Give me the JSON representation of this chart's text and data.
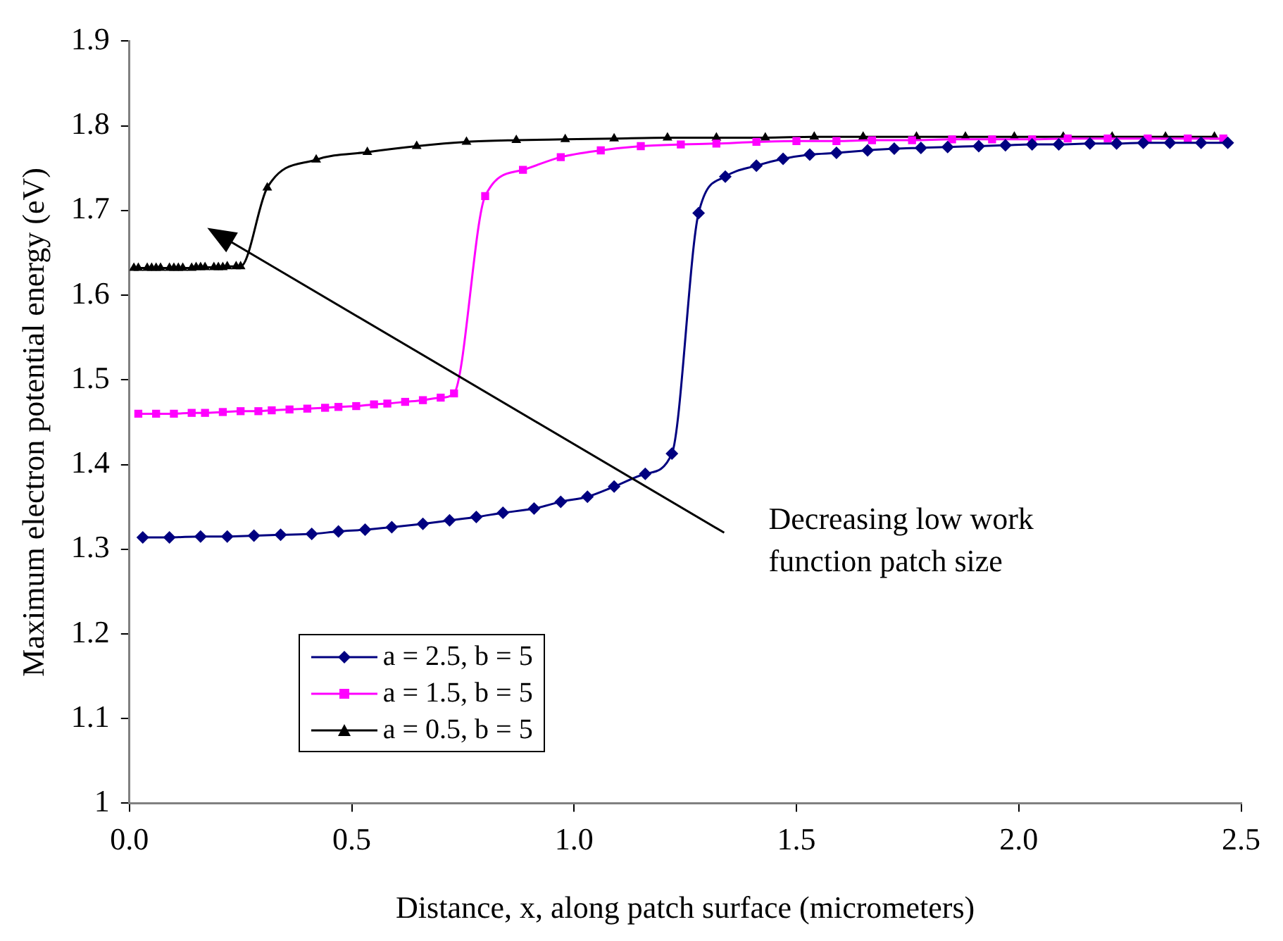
{
  "chart_data": {
    "type": "line",
    "xlabel": "Distance, x, along patch surface (micrometers)",
    "ylabel": "Maximum electron potential energy (eV)",
    "xlim": [
      0,
      2.5
    ],
    "xticks": [
      {
        "value": 0,
        "label": "0.0"
      },
      {
        "value": 0.5,
        "label": "0.5"
      },
      {
        "value": 1,
        "label": "1.0"
      },
      {
        "value": 1.5,
        "label": "1.5"
      },
      {
        "value": 2,
        "label": "2.0"
      },
      {
        "value": 2.5,
        "label": "2.5"
      }
    ],
    "ylim": [
      1,
      1.9
    ],
    "yticks": [
      1,
      1.1,
      1.2,
      1.3,
      1.4,
      1.5,
      1.6,
      1.7,
      1.8,
      1.9
    ],
    "grid": false,
    "legend": "bottom left",
    "line_style": "solid",
    "annotations": [
      "Decreasing low work function patch size"
    ],
    "series": [
      {
        "name": "a = 2.5, b = 5",
        "color": "#000080",
        "marker": "diamond",
        "x": [
          0.03,
          0.09,
          0.16,
          0.22,
          0.28,
          0.34,
          0.41,
          0.47,
          0.53,
          0.59,
          0.66,
          0.72,
          0.78,
          0.84,
          0.91,
          0.97,
          1.03,
          1.09,
          1.16,
          1.22,
          1.28,
          1.34,
          1.41,
          1.47,
          1.53,
          1.59,
          1.66,
          1.72,
          1.78,
          1.84,
          1.91,
          1.97,
          2.03,
          2.09,
          2.16,
          2.22,
          2.28,
          2.34,
          2.41,
          2.47
        ],
        "values": [
          1.314,
          1.314,
          1.315,
          1.315,
          1.316,
          1.317,
          1.318,
          1.321,
          1.323,
          1.326,
          1.33,
          1.334,
          1.338,
          1.343,
          1.348,
          1.356,
          1.362,
          1.374,
          1.389,
          1.413,
          1.697,
          1.74,
          1.753,
          1.761,
          1.766,
          1.768,
          1.771,
          1.773,
          1.774,
          1.775,
          1.776,
          1.777,
          1.778,
          1.778,
          1.779,
          1.779,
          1.78,
          1.78,
          1.78,
          1.78
        ]
      },
      {
        "name": "a = 1.5, b = 5",
        "color": "#ff00ff",
        "marker": "square",
        "x": [
          0.02,
          0.06,
          0.1,
          0.14,
          0.17,
          0.21,
          0.25,
          0.29,
          0.32,
          0.36,
          0.4,
          0.44,
          0.47,
          0.51,
          0.55,
          0.58,
          0.62,
          0.66,
          0.7,
          0.73,
          0.8,
          0.885,
          0.97,
          1.06,
          1.15,
          1.24,
          1.32,
          1.41,
          1.5,
          1.59,
          1.67,
          1.76,
          1.85,
          1.94,
          2.03,
          2.11,
          2.2,
          2.29,
          2.38,
          2.46
        ],
        "values": [
          1.46,
          1.46,
          1.46,
          1.461,
          1.461,
          1.462,
          1.463,
          1.463,
          1.464,
          1.465,
          1.466,
          1.467,
          1.468,
          1.469,
          1.471,
          1.472,
          1.474,
          1.476,
          1.479,
          1.484,
          1.717,
          1.748,
          1.763,
          1.771,
          1.776,
          1.778,
          1.779,
          1.781,
          1.782,
          1.782,
          1.783,
          1.783,
          1.784,
          1.784,
          1.784,
          1.785,
          1.785,
          1.785,
          1.785,
          1.785
        ]
      },
      {
        "name": "a = 0.5, b = 5",
        "color": "#000000",
        "marker": "triangle",
        "x": [
          0.01,
          0.02,
          0.04,
          0.05,
          0.06,
          0.07,
          0.09,
          0.1,
          0.11,
          0.12,
          0.14,
          0.15,
          0.16,
          0.17,
          0.19,
          0.2,
          0.21,
          0.22,
          0.24,
          0.25,
          0.31,
          0.42,
          0.535,
          0.646,
          0.758,
          0.87,
          0.98,
          1.09,
          1.21,
          1.32,
          1.43,
          1.54,
          1.65,
          1.77,
          1.88,
          1.99,
          2.1,
          2.21,
          2.33,
          2.44
        ],
        "values": [
          1.632,
          1.632,
          1.632,
          1.632,
          1.632,
          1.632,
          1.632,
          1.632,
          1.632,
          1.632,
          1.632,
          1.633,
          1.633,
          1.633,
          1.633,
          1.633,
          1.633,
          1.634,
          1.634,
          1.634,
          1.727,
          1.76,
          1.769,
          1.776,
          1.781,
          1.783,
          1.784,
          1.785,
          1.786,
          1.786,
          1.786,
          1.787,
          1.787,
          1.787,
          1.787,
          1.787,
          1.787,
          1.787,
          1.787,
          1.787
        ]
      }
    ]
  }
}
